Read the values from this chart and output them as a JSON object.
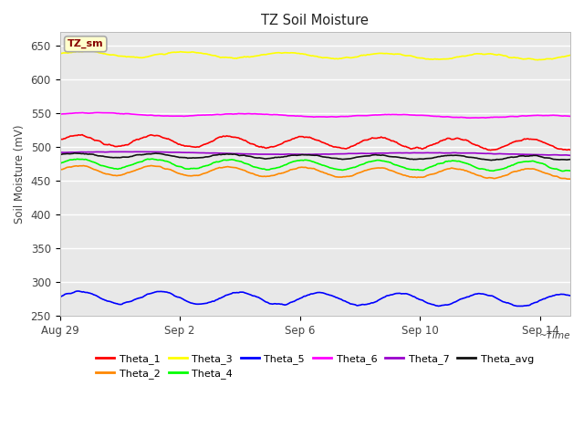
{
  "title": "TZ Soil Moisture",
  "ylabel": "Soil Moisture (mV)",
  "xlim_days": 17,
  "ylim": [
    250,
    670
  ],
  "yticks": [
    250,
    300,
    350,
    400,
    450,
    500,
    550,
    600,
    650
  ],
  "bg_color": "#e8e8e8",
  "legend_label": "TZ_sm",
  "series": [
    {
      "name": "Theta_1",
      "color": "#ff0000",
      "base": 510,
      "amp": 8,
      "freq": 1.6,
      "trend": -0.35,
      "noise": 1.5
    },
    {
      "name": "Theta_2",
      "color": "#ff8800",
      "base": 466,
      "amp": 7,
      "freq": 1.6,
      "trend": -0.35,
      "noise": 1.0
    },
    {
      "name": "Theta_3",
      "color": "#ffff00",
      "base": 638,
      "amp": 4,
      "freq": 1.2,
      "trend": -0.3,
      "noise": 1.0
    },
    {
      "name": "Theta_4",
      "color": "#00ff00",
      "base": 476,
      "amp": 7,
      "freq": 1.6,
      "trend": -0.25,
      "noise": 1.0
    },
    {
      "name": "Theta_5",
      "color": "#0000ff",
      "base": 278,
      "amp": 9,
      "freq": 1.5,
      "trend": -0.3,
      "noise": 1.0
    },
    {
      "name": "Theta_6",
      "color": "#ff00ff",
      "base": 549,
      "amp": 2,
      "freq": 0.8,
      "trend": -0.25,
      "noise": 0.5
    },
    {
      "name": "Theta_7",
      "color": "#9900cc",
      "base": 492,
      "amp": 1.5,
      "freq": 0.4,
      "trend": -0.15,
      "noise": 0.3
    },
    {
      "name": "Theta_avg",
      "color": "#111111",
      "base": 488,
      "amp": 3,
      "freq": 1.6,
      "trend": -0.25,
      "noise": 0.8
    }
  ],
  "xtick_labels": [
    "Aug 29",
    "Sep 2",
    "Sep 6",
    "Sep 10",
    "Sep 14"
  ],
  "xtick_days": [
    0,
    4,
    8,
    12,
    16
  ],
  "legend_order": [
    "Theta_1",
    "Theta_2",
    "Theta_3",
    "Theta_4",
    "Theta_5",
    "Theta_6",
    "Theta_7",
    "Theta_avg"
  ]
}
